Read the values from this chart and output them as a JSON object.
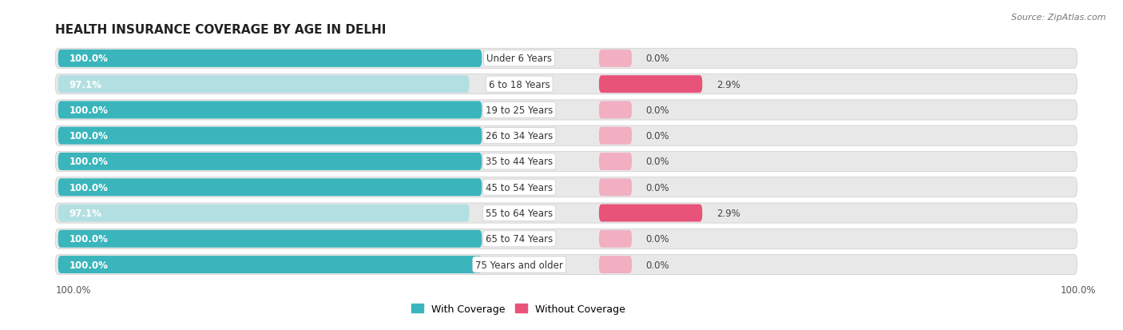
{
  "title": "HEALTH INSURANCE COVERAGE BY AGE IN DELHI",
  "source": "Source: ZipAtlas.com",
  "categories": [
    "Under 6 Years",
    "6 to 18 Years",
    "19 to 25 Years",
    "26 to 34 Years",
    "35 to 44 Years",
    "45 to 54 Years",
    "55 to 64 Years",
    "65 to 74 Years",
    "75 Years and older"
  ],
  "with_coverage": [
    100.0,
    97.1,
    100.0,
    100.0,
    100.0,
    100.0,
    97.1,
    100.0,
    100.0
  ],
  "without_coverage": [
    0.0,
    2.9,
    0.0,
    0.0,
    0.0,
    0.0,
    2.9,
    0.0,
    0.0
  ],
  "color_with_dark": "#3ab5bc",
  "color_with_light": "#b2dfe2",
  "color_without_dark": "#e8537a",
  "color_without_light": "#f2afc2",
  "bg_row": "#e8e8e8",
  "bg_figure": "#ffffff",
  "title_fontsize": 11,
  "bar_label_fontsize": 8.5,
  "cat_label_fontsize": 8.5,
  "pct_label_fontsize": 8.5,
  "legend_fontsize": 9,
  "source_fontsize": 8,
  "bottom_label": "100.0%"
}
